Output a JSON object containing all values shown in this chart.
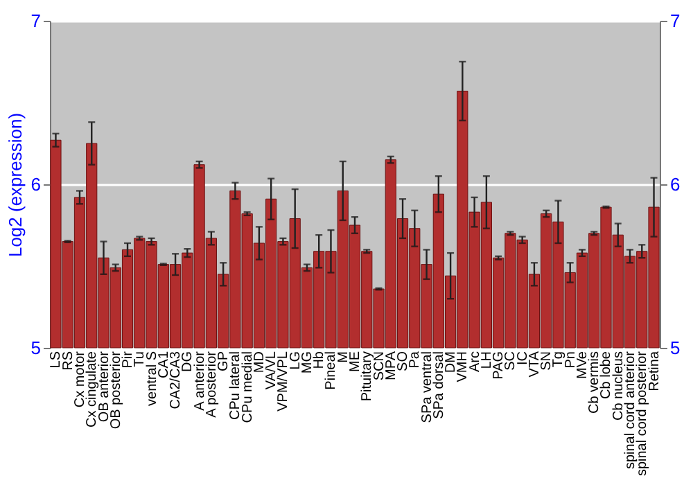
{
  "chart_data": {
    "type": "bar",
    "ylabel": "Log2 (expression)",
    "categories": [
      "LS",
      "RS",
      "Cx motor",
      "Cx cingulate",
      "OB anterior",
      "OB posterior",
      "Pir",
      "Tu",
      "ventral S",
      "CA1",
      "CA2/CA3",
      "DG",
      "A anterior",
      "A posterior",
      "GP",
      "CPu lateral",
      "CPu medial",
      "MD",
      "VA/VL",
      "VPM/VPL",
      "LG",
      "MG",
      "Hb",
      "Pineal",
      "M",
      "ME",
      "Pituitary",
      "SCN",
      "MPA",
      "SO",
      "Pa",
      "SPa ventral",
      "SPa dorsal",
      "DM",
      "VMH",
      "Arc",
      "LH",
      "PAG",
      "SC",
      "IC",
      "VTA",
      "SN",
      "Tg",
      "Pn",
      "MVe",
      "Cb vermis",
      "Cb lobe",
      "Cb nucleus",
      "spinal cord anterior",
      "spinal cord posterior",
      "Retina"
    ],
    "series": [
      {
        "color": "#b22e2e",
        "values": [
          6.27,
          5.65,
          5.92,
          6.25,
          5.55,
          5.49,
          5.6,
          5.67,
          5.65,
          5.51,
          5.51,
          5.58,
          6.12,
          5.67,
          5.45,
          5.96,
          5.82,
          5.64,
          5.91,
          5.65,
          5.79,
          5.49,
          5.59,
          5.59,
          5.96,
          5.75,
          5.59,
          5.36,
          6.15,
          5.79,
          5.73,
          5.51,
          5.94,
          5.44,
          6.57,
          5.83,
          5.89,
          5.55,
          5.7,
          5.66,
          5.45,
          5.82,
          5.77,
          5.46,
          5.58,
          5.7,
          5.86,
          5.69,
          5.56,
          5.59,
          5.86
        ],
        "errors": [
          0.04,
          0.005,
          0.04,
          0.13,
          0.1,
          0.02,
          0.04,
          0.01,
          0.02,
          0.005,
          0.065,
          0.025,
          0.02,
          0.04,
          0.07,
          0.05,
          0.01,
          0.1,
          0.125,
          0.02,
          0.18,
          0.02,
          0.1,
          0.13,
          0.18,
          0.05,
          0.01,
          0.005,
          0.02,
          0.12,
          0.11,
          0.09,
          0.11,
          0.14,
          0.18,
          0.09,
          0.16,
          0.01,
          0.01,
          0.02,
          0.07,
          0.02,
          0.13,
          0.06,
          0.02,
          0.01,
          0.005,
          0.07,
          0.04,
          0.04,
          0.18
        ]
      }
    ],
    "ylim": [
      5,
      7
    ],
    "yticks": [
      5,
      6,
      7
    ],
    "y2lim": [
      5,
      7
    ],
    "y2ticks": [
      5,
      6,
      7
    ],
    "grid": "y"
  }
}
